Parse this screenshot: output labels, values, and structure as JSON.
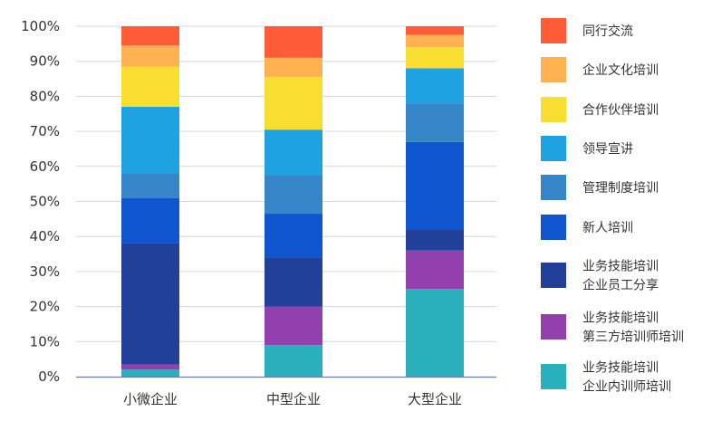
{
  "chart_data": {
    "type": "bar",
    "stacked": true,
    "percent": true,
    "categories": [
      "小微企业",
      "中型企业",
      "大型企业"
    ],
    "ylim": [
      0,
      100
    ],
    "yticks": [
      "0%",
      "10%",
      "20%",
      "30%",
      "40%",
      "50%",
      "60%",
      "70%",
      "80%",
      "90%",
      "100%"
    ],
    "grid": true,
    "legend_position": "right",
    "series": [
      {
        "name": "业务技能培训\n企业内训师培训",
        "color": "#2aafbd",
        "values": [
          2,
          9,
          25
        ]
      },
      {
        "name": "业务技能培训\n第三方培训师培训",
        "color": "#9140ad",
        "values": [
          1.5,
          11,
          11
        ]
      },
      {
        "name": "业务技能培训\n企业员工分享",
        "color": "#22409a",
        "values": [
          34.5,
          14,
          6
        ]
      },
      {
        "name": "新人培训",
        "color": "#0f55d0",
        "values": [
          13,
          12.5,
          25
        ]
      },
      {
        "name": "管理制度培训",
        "color": "#3685c9",
        "values": [
          7,
          11,
          11
        ]
      },
      {
        "name": "领导宣讲",
        "color": "#1fa3e0",
        "values": [
          19,
          13,
          10
        ]
      },
      {
        "name": "合作伙伴培训",
        "color": "#f9de32",
        "values": [
          11.5,
          15,
          6
        ]
      },
      {
        "name": "企业文化培训",
        "color": "#fdb150",
        "values": [
          6,
          5.5,
          3.5
        ]
      },
      {
        "name": "同行交流",
        "color": "#fe5c38",
        "values": [
          5.5,
          9,
          2.5
        ]
      }
    ]
  }
}
